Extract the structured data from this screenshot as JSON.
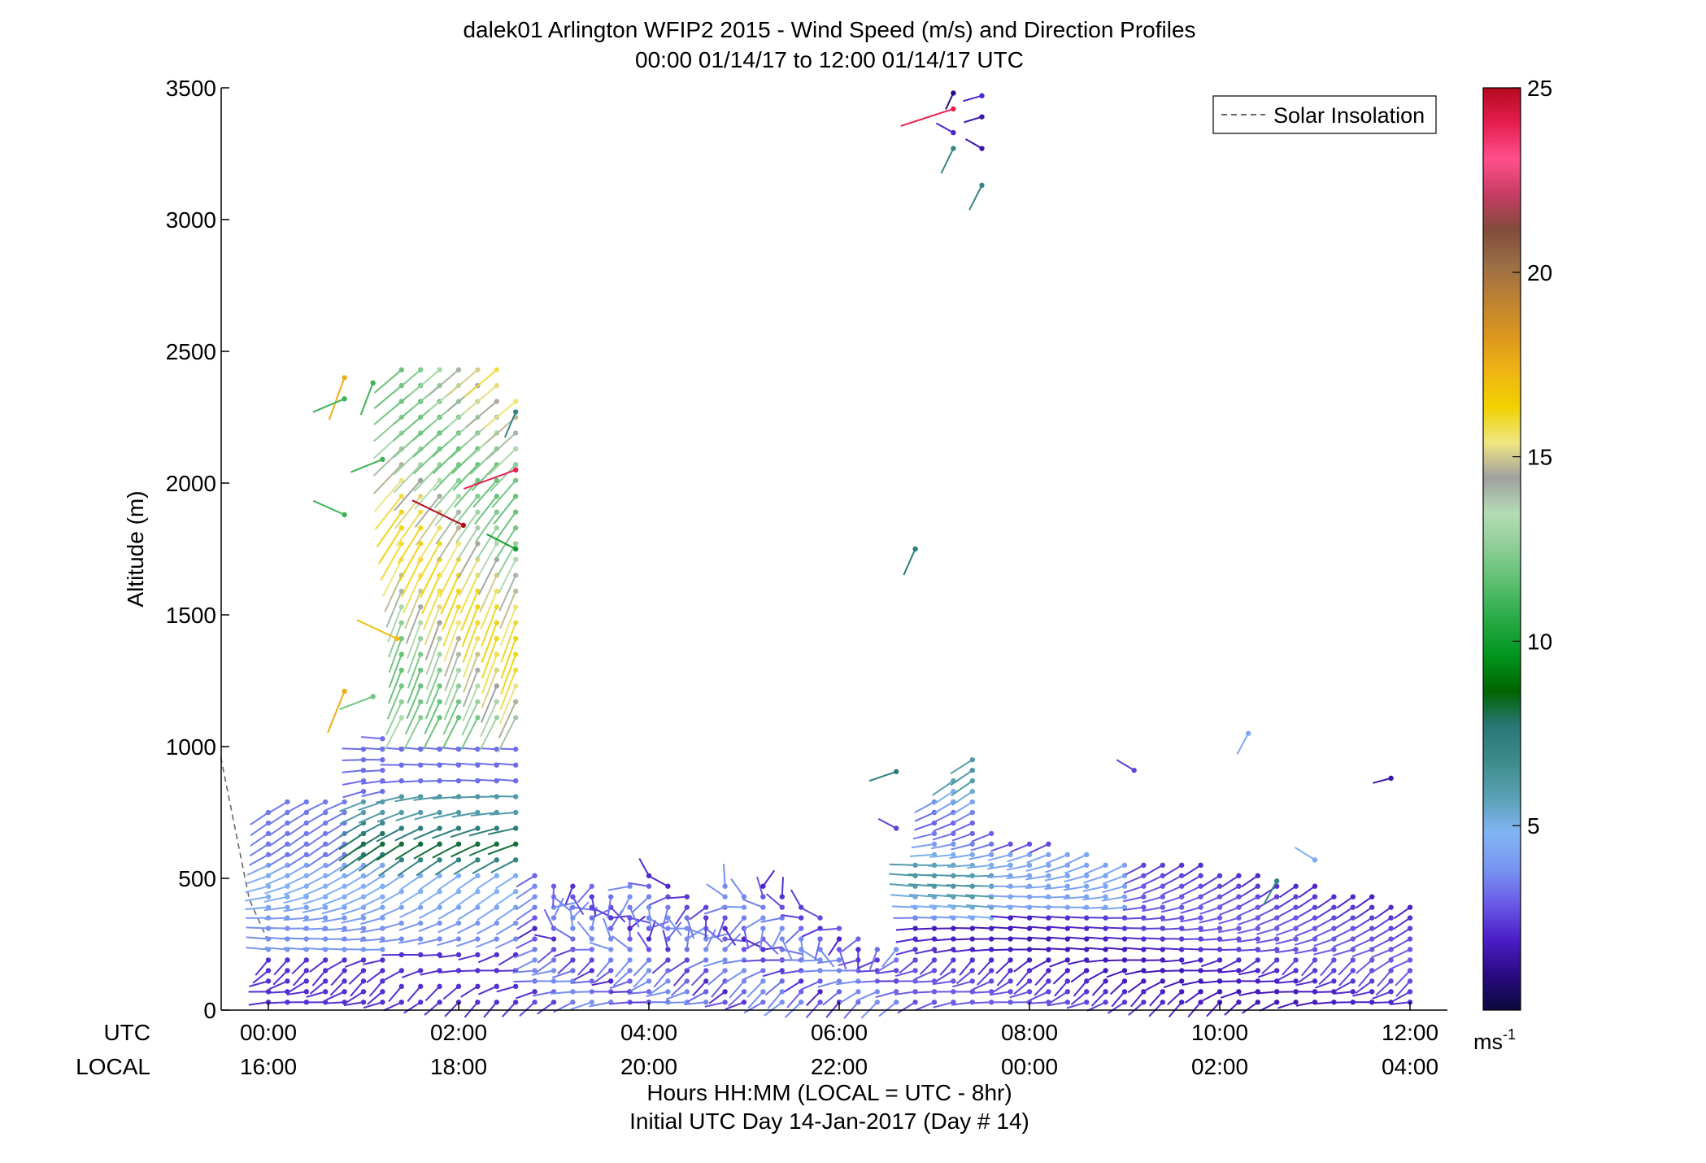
{
  "chart_data": {
    "type": "scatter",
    "title": "dalek01 Arlington WFIP2 2015 - Wind Speed (m/s) and Direction Profiles",
    "subtitle": "00:00 01/14/17 to 12:00 01/14/17  UTC",
    "ylabel": "Altitude (m)",
    "ylim": [
      0,
      3500
    ],
    "y_ticks": [
      "0",
      "500",
      "1000",
      "1500",
      "2000",
      "2500",
      "3000",
      "3500"
    ],
    "xlim": [
      "00:00",
      "12:00"
    ],
    "x_ticks_utc": [
      "00:00",
      "02:00",
      "04:00",
      "06:00",
      "08:00",
      "10:00",
      "12:00"
    ],
    "x_ticks_local": [
      "16:00",
      "18:00",
      "20:00",
      "22:00",
      "00:00",
      "02:00",
      "04:00"
    ],
    "x_row_label_utc": "UTC",
    "x_row_label_local": "LOCAL",
    "xlabel": "Hours HH:MM  (LOCAL = UTC - 8hr)",
    "xlabel2": "Initial UTC Day 14-Jan-2017 (Day # 14)",
    "legend": {
      "entries": [
        "Solar Insolation"
      ],
      "placement": "top-right"
    },
    "colorbar": {
      "range": [
        0,
        25
      ],
      "ticks": [
        "5",
        "10",
        "15",
        "20",
        "25"
      ],
      "unit": "ms",
      "unit_exp": "-1",
      "colors": [
        "#0a0a3c",
        "#2a0a82",
        "#4b1ec8",
        "#6a5ae6",
        "#7896f0",
        "#82b4f5",
        "#5aa0b4",
        "#3c8c8c",
        "#287878",
        "#006400",
        "#00961e",
        "#28aa46",
        "#5abe6e",
        "#8ccd96",
        "#b4dcb4",
        "#a0a0a0",
        "#f0e682",
        "#f0d200",
        "#f0b414",
        "#dc961e",
        "#be8232",
        "#9b6e46",
        "#824b3c",
        "#c83c64",
        "#ff508c",
        "#e61e50",
        "#b40a1e"
      ]
    },
    "solar_insolation": {
      "x_hours": [
        -0.5,
        -0.2,
        0.0
      ],
      "y": [
        960,
        420,
        260
      ]
    },
    "columns": [
      {
        "t": 0.0,
        "top": 780
      },
      {
        "t": 0.2,
        "top": 790
      },
      {
        "t": 0.4,
        "top": 790
      },
      {
        "t": 0.6,
        "top": 790
      },
      {
        "t": 0.8,
        "top": 800
      },
      {
        "t": 1.0,
        "top": 1010
      },
      {
        "t": 1.2,
        "top": 1030
      },
      {
        "t": 1.4,
        "top": 2440
      },
      {
        "t": 1.6,
        "top": 2460
      },
      {
        "t": 1.8,
        "top": 2480
      },
      {
        "t": 2.0,
        "top": 2460
      },
      {
        "t": 2.2,
        "top": 2450
      },
      {
        "t": 2.4,
        "top": 2430
      },
      {
        "t": 2.6,
        "top": 2360
      },
      {
        "t": 2.8,
        "top": 540
      },
      {
        "t": 3.0,
        "top": 500
      },
      {
        "t": 3.2,
        "top": 500
      },
      {
        "t": 3.4,
        "top": 500
      },
      {
        "t": 3.6,
        "top": 450
      },
      {
        "t": 3.8,
        "top": 480
      },
      {
        "t": 4.0,
        "top": 520
      },
      {
        "t": 4.2,
        "top": 470
      },
      {
        "t": 4.4,
        "top": 430
      },
      {
        "t": 4.6,
        "top": 400
      },
      {
        "t": 4.8,
        "top": 470
      },
      {
        "t": 5.0,
        "top": 440
      },
      {
        "t": 5.2,
        "top": 480
      },
      {
        "t": 5.4,
        "top": 460
      },
      {
        "t": 5.6,
        "top": 400
      },
      {
        "t": 5.8,
        "top": 360
      },
      {
        "t": 6.0,
        "top": 310
      },
      {
        "t": 6.2,
        "top": 280
      },
      {
        "t": 6.4,
        "top": 260
      },
      {
        "t": 6.6,
        "top": 230
      },
      {
        "t": 6.8,
        "top": 560
      },
      {
        "t": 7.0,
        "top": 790
      },
      {
        "t": 7.2,
        "top": 900
      },
      {
        "t": 7.4,
        "top": 980
      },
      {
        "t": 7.6,
        "top": 680
      },
      {
        "t": 7.8,
        "top": 650
      },
      {
        "t": 8.0,
        "top": 630
      },
      {
        "t": 8.2,
        "top": 640
      },
      {
        "t": 8.4,
        "top": 620
      },
      {
        "t": 8.6,
        "top": 600
      },
      {
        "t": 8.8,
        "top": 580
      },
      {
        "t": 9.0,
        "top": 570
      },
      {
        "t": 9.2,
        "top": 560
      },
      {
        "t": 9.4,
        "top": 560
      },
      {
        "t": 9.6,
        "top": 560
      },
      {
        "t": 9.8,
        "top": 550
      },
      {
        "t": 10.0,
        "top": 540
      },
      {
        "t": 10.2,
        "top": 520
      },
      {
        "t": 10.4,
        "top": 510
      },
      {
        "t": 10.6,
        "top": 500
      },
      {
        "t": 10.8,
        "top": 490
      },
      {
        "t": 11.0,
        "top": 470
      },
      {
        "t": 11.2,
        "top": 460
      },
      {
        "t": 11.4,
        "top": 440
      },
      {
        "t": 11.6,
        "top": 430
      },
      {
        "t": 11.8,
        "top": 420
      },
      {
        "t": 12.0,
        "top": 420
      }
    ],
    "isolated_barbs": [
      {
        "t": 0.8,
        "alt": 2400,
        "speed": 17.5
      },
      {
        "t": 0.8,
        "alt": 2320,
        "speed": 11
      },
      {
        "t": 0.8,
        "alt": 1880,
        "speed": 11
      },
      {
        "t": 1.1,
        "alt": 2380,
        "speed": 11
      },
      {
        "t": 1.2,
        "alt": 2090,
        "speed": 11
      },
      {
        "t": 1.35,
        "alt": 1410,
        "speed": 17
      },
      {
        "t": 0.8,
        "alt": 1210,
        "speed": 17.5
      },
      {
        "t": 1.1,
        "alt": 1190,
        "speed": 12
      },
      {
        "t": 2.05,
        "alt": 1840,
        "speed": 25
      },
      {
        "t": 2.6,
        "alt": 2270,
        "speed": 7
      },
      {
        "t": 2.6,
        "alt": 2050,
        "speed": 24
      },
      {
        "t": 2.6,
        "alt": 1750,
        "speed": 10
      },
      {
        "t": 6.8,
        "alt": 1750,
        "speed": 7.5
      },
      {
        "t": 6.6,
        "alt": 905,
        "speed": 7.5
      },
      {
        "t": 6.6,
        "alt": 690,
        "speed": 2.5
      },
      {
        "t": 7.2,
        "alt": 3480,
        "speed": 1
      },
      {
        "t": 7.2,
        "alt": 3420,
        "speed": 24
      },
      {
        "t": 7.2,
        "alt": 3330,
        "speed": 2
      },
      {
        "t": 7.2,
        "alt": 3270,
        "speed": 7
      },
      {
        "t": 7.5,
        "alt": 3390,
        "speed": 1.5
      },
      {
        "t": 7.5,
        "alt": 3270,
        "speed": 1.5
      },
      {
        "t": 7.5,
        "alt": 3130,
        "speed": 7
      },
      {
        "t": 7.5,
        "alt": 3470,
        "speed": 2
      },
      {
        "t": 9.1,
        "alt": 910,
        "speed": 2.5
      },
      {
        "t": 10.3,
        "alt": 1050,
        "speed": 4.5
      },
      {
        "t": 11.8,
        "alt": 880,
        "speed": 1.5
      },
      {
        "t": 11.0,
        "alt": 570,
        "speed": 4.5
      },
      {
        "t": 10.6,
        "alt": 490,
        "speed": 7
      }
    ]
  }
}
